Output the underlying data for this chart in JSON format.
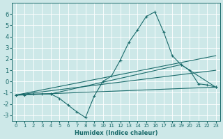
{
  "xlabel": "Humidex (Indice chaleur)",
  "bg_color": "#cde8e8",
  "grid_color": "#ffffff",
  "line_color": "#1a6b6b",
  "xlim": [
    -0.5,
    23.5
  ],
  "ylim": [
    -3.5,
    7.0
  ],
  "xticks": [
    0,
    1,
    2,
    3,
    4,
    5,
    6,
    7,
    8,
    9,
    10,
    11,
    12,
    13,
    14,
    15,
    16,
    17,
    18,
    19,
    20,
    21,
    22,
    23
  ],
  "yticks": [
    -3,
    -2,
    -1,
    0,
    1,
    2,
    3,
    4,
    5,
    6
  ],
  "series": [
    {
      "x": [
        0,
        1,
        2,
        3,
        4,
        5,
        6,
        7,
        8,
        9,
        10,
        11,
        12,
        13,
        14,
        15,
        16,
        17,
        18,
        19,
        20,
        21,
        22,
        23
      ],
      "y": [
        -1.2,
        -1.2,
        -1.1,
        -1.1,
        -1.1,
        -1.5,
        -2.1,
        -2.7,
        -3.2,
        -1.3,
        0.0,
        0.5,
        1.9,
        3.5,
        4.6,
        5.8,
        6.2,
        4.4,
        2.3,
        1.5,
        1.0,
        -0.2,
        -0.3,
        -0.5
      ],
      "marker": true,
      "with_line": true
    },
    {
      "x": [
        0,
        4,
        19,
        23
      ],
      "y": [
        -1.2,
        -1.1,
        1.5,
        -0.5
      ],
      "marker": true,
      "with_line": true
    },
    {
      "x": [
        0,
        23
      ],
      "y": [
        -1.2,
        2.3
      ],
      "marker": false,
      "with_line": true
    },
    {
      "x": [
        0,
        23
      ],
      "y": [
        -1.2,
        1.0
      ],
      "marker": false,
      "with_line": true
    },
    {
      "x": [
        0,
        23
      ],
      "y": [
        -1.2,
        -0.5
      ],
      "marker": false,
      "with_line": true
    }
  ],
  "xlabel_fontsize": 6,
  "tick_fontsize": 5,
  "linewidth": 0.8,
  "markersize": 2.5
}
